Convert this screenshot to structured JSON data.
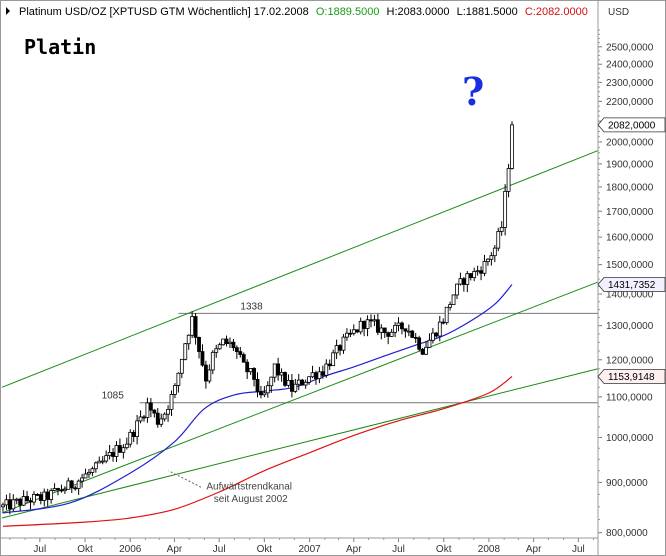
{
  "header": {
    "symbol": "Platinum USD/OZ [XPTUSD GTM  Wöchentlich] 17.02.2008",
    "open": "O:1889.5000",
    "high": "H:2083.0000",
    "low": "L:1881.5000",
    "close": "C:2082.0000",
    "currency": "USD"
  },
  "title_text": "Platin",
  "question_mark": "?",
  "colors": {
    "background": "#ffffff",
    "frame": "#999999",
    "candle": "#000000",
    "ma_blue": "#1f1fd0",
    "ma_red": "#e01010",
    "trend_green": "#1a8a1a",
    "level_gray": "#777777",
    "header_green": "#1a9a1a",
    "header_red": "#d01010"
  },
  "chart_data": {
    "type": "candlestick",
    "y_scale": "log",
    "ylim": [
      790,
      2650
    ],
    "y_ticks": [
      {
        "value": 800,
        "label": "800,0000"
      },
      {
        "value": 900,
        "label": "900,0000"
      },
      {
        "value": 1000,
        "label": "1000,0000"
      },
      {
        "value": 1100,
        "label": "1100,0000"
      },
      {
        "value": 1200,
        "label": "1200,0000"
      },
      {
        "value": 1300,
        "label": "1300,0000"
      },
      {
        "value": 1400,
        "label": "1400,0000"
      },
      {
        "value": 1500,
        "label": "1500,0000"
      },
      {
        "value": 1600,
        "label": "1600,0000"
      },
      {
        "value": 1700,
        "label": "1700,0000"
      },
      {
        "value": 1800,
        "label": "1800,0000"
      },
      {
        "value": 1900,
        "label": "1900,0000"
      },
      {
        "value": 2000,
        "label": "2000,0000"
      },
      {
        "value": 2100,
        "label": "2100,0000"
      },
      {
        "value": 2200,
        "label": "2200,0000"
      },
      {
        "value": 2300,
        "label": "2300,0000"
      },
      {
        "value": 2400,
        "label": "2400,0000"
      },
      {
        "value": 2500,
        "label": "2500,0000"
      }
    ],
    "xlim": [
      "2005-04-15",
      "2008-08-10"
    ],
    "x_ticks": [
      {
        "date": "2005-07-01",
        "label": "Jul"
      },
      {
        "date": "2005-10-01",
        "label": "Okt"
      },
      {
        "date": "2006-01-01",
        "label": "2006"
      },
      {
        "date": "2006-04-01",
        "label": "Apr"
      },
      {
        "date": "2006-07-01",
        "label": "Jul"
      },
      {
        "date": "2006-10-01",
        "label": "Okt"
      },
      {
        "date": "2007-01-01",
        "label": "2007"
      },
      {
        "date": "2007-04-01",
        "label": "Apr"
      },
      {
        "date": "2007-07-01",
        "label": "Jul"
      },
      {
        "date": "2007-10-01",
        "label": "Okt"
      },
      {
        "date": "2008-01-01",
        "label": "2008"
      },
      {
        "date": "2008-04-01",
        "label": "Apr"
      },
      {
        "date": "2008-07-01",
        "label": "Jul"
      }
    ],
    "price_path": [
      [
        "2005-04-17",
        850
      ],
      [
        "2005-05-15",
        858
      ],
      [
        "2005-06-12",
        865
      ],
      [
        "2005-07-10",
        868
      ],
      [
        "2005-08-07",
        882
      ],
      [
        "2005-09-04",
        895
      ],
      [
        "2005-10-02",
        915
      ],
      [
        "2005-10-30",
        935
      ],
      [
        "2005-11-27",
        965
      ],
      [
        "2005-12-25",
        990
      ],
      [
        "2006-01-15",
        1030
      ],
      [
        "2006-02-05",
        1080
      ],
      [
        "2006-02-26",
        1040
      ],
      [
        "2006-03-12",
        1060
      ],
      [
        "2006-04-02",
        1120
      ],
      [
        "2006-04-23",
        1250
      ],
      [
        "2006-05-07",
        1320
      ],
      [
        "2006-05-21",
        1230
      ],
      [
        "2006-06-04",
        1150
      ],
      [
        "2006-06-18",
        1210
      ],
      [
        "2006-07-09",
        1250
      ],
      [
        "2006-07-30",
        1240
      ],
      [
        "2006-08-20",
        1180
      ],
      [
        "2006-09-10",
        1150
      ],
      [
        "2006-09-24",
        1090
      ],
      [
        "2006-10-08",
        1120
      ],
      [
        "2006-10-22",
        1180
      ],
      [
        "2006-11-05",
        1150
      ],
      [
        "2006-11-26",
        1120
      ],
      [
        "2006-12-17",
        1140
      ],
      [
        "2007-01-07",
        1160
      ],
      [
        "2007-01-28",
        1170
      ],
      [
        "2007-02-18",
        1210
      ],
      [
        "2007-03-11",
        1250
      ],
      [
        "2007-04-01",
        1280
      ],
      [
        "2007-04-22",
        1310
      ],
      [
        "2007-05-13",
        1300
      ],
      [
        "2007-06-03",
        1280
      ],
      [
        "2007-06-24",
        1285
      ],
      [
        "2007-07-15",
        1300
      ],
      [
        "2007-08-05",
        1260
      ],
      [
        "2007-08-19",
        1230
      ],
      [
        "2007-09-09",
        1270
      ],
      [
        "2007-09-30",
        1320
      ],
      [
        "2007-10-21",
        1400
      ],
      [
        "2007-11-11",
        1450
      ],
      [
        "2007-12-02",
        1470
      ],
      [
        "2007-12-23",
        1500
      ],
      [
        "2008-01-13",
        1560
      ],
      [
        "2008-01-27",
        1640
      ],
      [
        "2008-02-03",
        1760
      ],
      [
        "2008-02-10",
        1900
      ],
      [
        "2008-02-17",
        2082
      ]
    ],
    "series": [
      {
        "type": "line",
        "color": "#1f1fd0",
        "points": [
          [
            "2005-04-17",
            838
          ],
          [
            "2005-09-01",
            858
          ],
          [
            "2006-01-01",
            920
          ],
          [
            "2006-04-01",
            990
          ],
          [
            "2006-06-01",
            1070
          ],
          [
            "2006-08-01",
            1105
          ],
          [
            "2006-10-01",
            1115
          ],
          [
            "2006-12-01",
            1125
          ],
          [
            "2007-02-01",
            1155
          ],
          [
            "2007-04-01",
            1180
          ],
          [
            "2007-06-01",
            1210
          ],
          [
            "2007-08-01",
            1240
          ],
          [
            "2007-10-01",
            1270
          ],
          [
            "2007-12-01",
            1320
          ],
          [
            "2008-01-15",
            1370
          ],
          [
            "2008-02-17",
            1431.7352
          ]
        ],
        "end_label": "1431,7352"
      },
      {
        "type": "line",
        "color": "#e01010",
        "points": [
          [
            "2005-04-17",
            812
          ],
          [
            "2005-10-01",
            820
          ],
          [
            "2006-01-01",
            828
          ],
          [
            "2006-04-01",
            845
          ],
          [
            "2006-07-01",
            880
          ],
          [
            "2006-10-01",
            925
          ],
          [
            "2007-01-01",
            965
          ],
          [
            "2007-04-01",
            1005
          ],
          [
            "2007-07-01",
            1040
          ],
          [
            "2007-10-01",
            1070
          ],
          [
            "2008-01-01",
            1110
          ],
          [
            "2008-02-17",
            1153.9148
          ]
        ],
        "end_label": "1153,9148"
      }
    ],
    "last_price_label": "2082,0000",
    "trendlines": [
      {
        "from": [
          "2005-04-15",
          1125
        ],
        "to": [
          "2008-08-10",
          1960
        ],
        "color": "#1a8a1a"
      },
      {
        "from": [
          "2005-04-15",
          838
        ],
        "to": [
          "2008-08-10",
          1440
        ],
        "color": "#1a8a1a"
      },
      {
        "from": [
          "2005-04-15",
          828
        ],
        "to": [
          "2008-08-10",
          1175
        ],
        "color": "#1a8a1a"
      }
    ],
    "levels": [
      {
        "value": 1338,
        "from": "2006-04-09",
        "to": "2008-08-10",
        "label": "1338"
      },
      {
        "value": 1085,
        "from": "2006-01-20",
        "to": "2008-08-10",
        "label": "1085"
      }
    ],
    "annotations": [
      {
        "text": "Aufwärtstrendkanal",
        "at": [
          "2006-06-05",
          885
        ]
      },
      {
        "text": "seit August 2002",
        "at": [
          "2006-06-20",
          860
        ]
      }
    ]
  }
}
